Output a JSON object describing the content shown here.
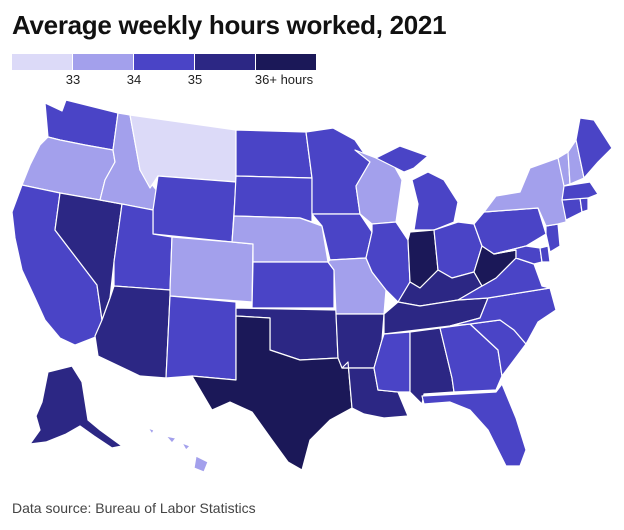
{
  "title": "Average weekly hours worked, 2021",
  "source": "Data source: Bureau of Labor Statistics",
  "legend": {
    "bins": [
      {
        "color": "#dcdaf8"
      },
      {
        "color": "#a3a0ec"
      },
      {
        "color": "#4a44c6"
      },
      {
        "color": "#2c2784"
      },
      {
        "color": "#1b1858"
      }
    ],
    "labels": [
      "33",
      "34",
      "35",
      "36+ hours"
    ]
  },
  "colors": {
    "background": "#ffffff",
    "border": "#ffffff",
    "title": "#111111"
  },
  "state_bins": {
    "MT": 0,
    "ME": 2,
    "NH": 1,
    "VT": 1,
    "MA": 2,
    "RI": 2,
    "CT": 2,
    "NY": 1,
    "NJ": 2,
    "PA": 2,
    "DE": 2,
    "MD": 2,
    "WV": 4,
    "VA": 2,
    "NC": 2,
    "SC": 2,
    "GA": 2,
    "FL": 2,
    "AL": 3,
    "MS": 2,
    "TN": 3,
    "KY": 3,
    "OH": 2,
    "MI": 2,
    "IN": 4,
    "IL": 2,
    "WI": 1,
    "MN": 2,
    "IA": 2,
    "MO": 1,
    "AR": 3,
    "LA": 3,
    "TX": 4,
    "OK": 3,
    "KS": 2,
    "NE": 1,
    "SD": 2,
    "ND": 2,
    "WY": 2,
    "CO": 1,
    "NM": 2,
    "AZ": 3,
    "UT": 2,
    "NV": 3,
    "ID": 1,
    "WA": 2,
    "OR": 1,
    "CA": 2,
    "AK": 3,
    "HI": 1
  }
}
